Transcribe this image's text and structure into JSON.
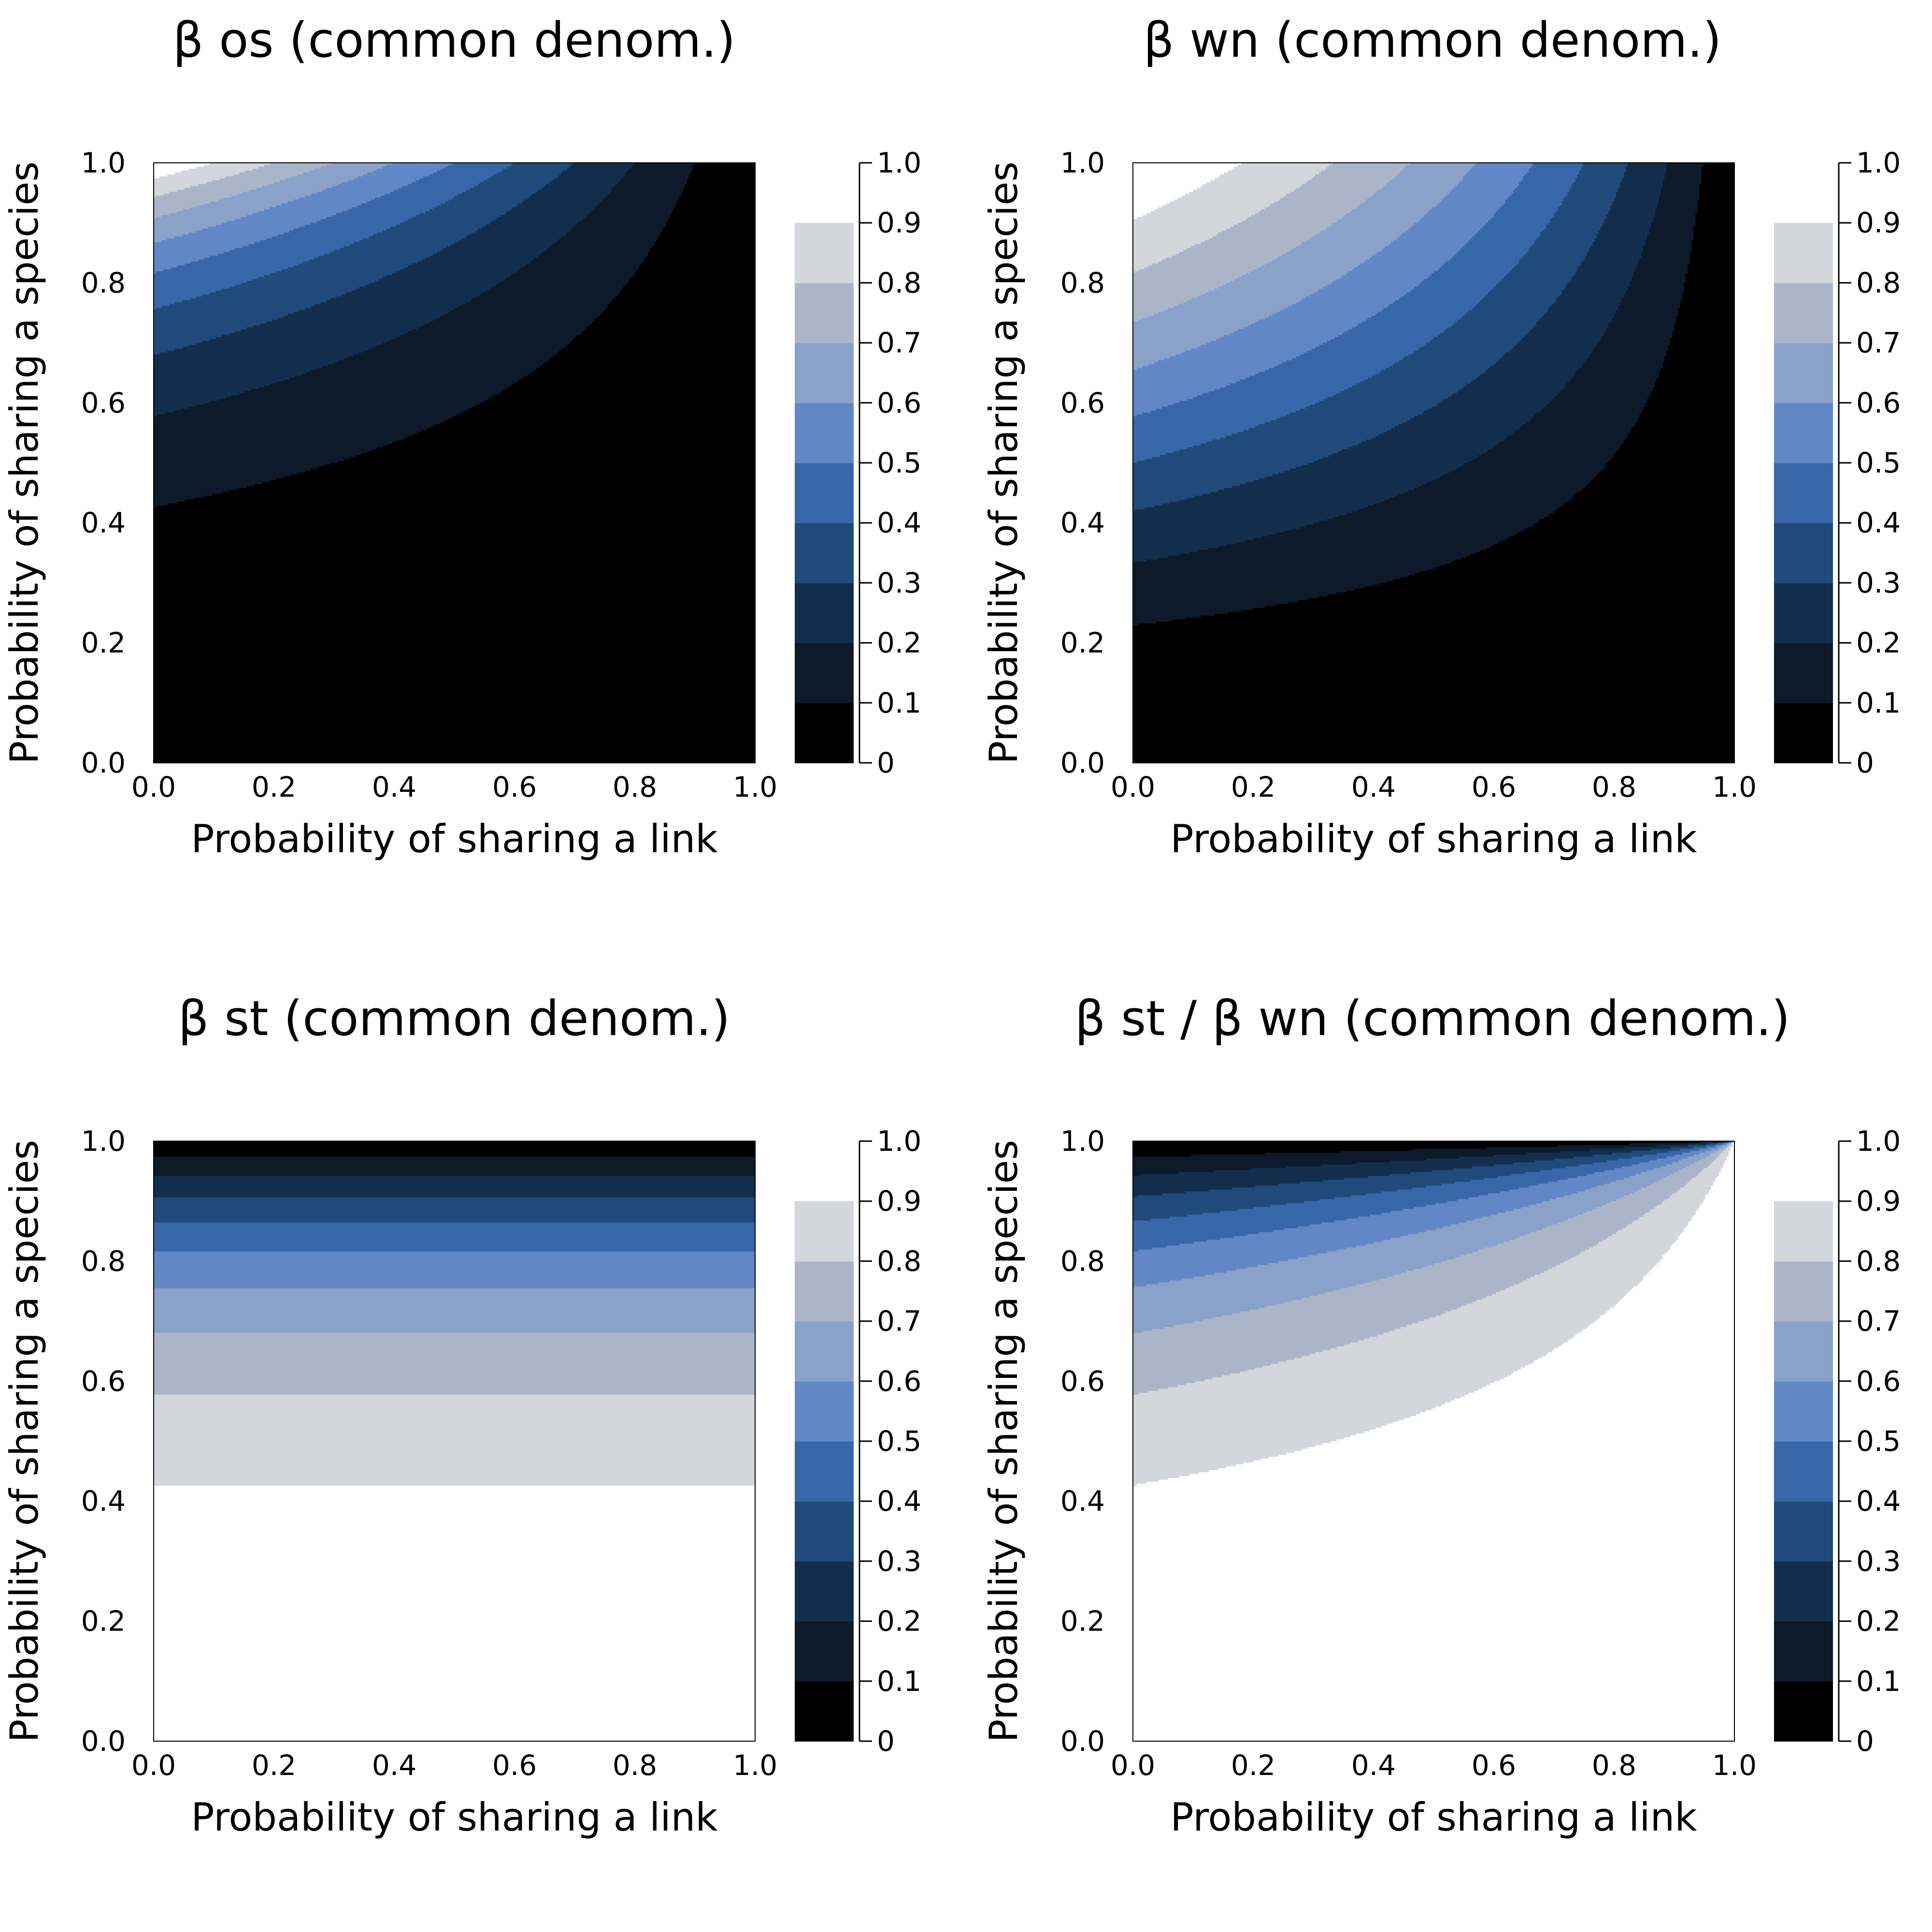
{
  "colors": {
    "levels": [
      "#000000",
      "#0d1a2a",
      "#132e4d",
      "#1f4a7a",
      "#3767a8",
      "#6287c7",
      "#8aa1ca",
      "#abb5ca",
      "#d3d6db",
      "#ffffff"
    ],
    "frame": "#000000",
    "background": "#ffffff"
  },
  "chart_data": [
    {
      "type": "heatmap",
      "title": "β os (common denom.)",
      "xlabel": "Probability of sharing a link",
      "ylabel": "Probability of sharing a species",
      "xlim": [
        0,
        1
      ],
      "ylim": [
        0,
        1
      ],
      "xticks": [
        "0.0",
        "0.2",
        "0.4",
        "0.6",
        "0.8",
        "1.0"
      ],
      "yticks": [
        "0.0",
        "0.2",
        "0.4",
        "0.6",
        "0.8",
        "1.0"
      ],
      "formula": "z = (1 - pl) * t / (2 - t), t = ps^2",
      "contour_levels": [
        0,
        0.1,
        0.2,
        0.3,
        0.4,
        0.5,
        0.6,
        0.7,
        0.8,
        0.9,
        1.0
      ],
      "colorbar_ticks": [
        "0",
        "0.1",
        "0.2",
        "0.3",
        "0.4",
        "0.5",
        "0.6",
        "0.7",
        "0.8",
        "0.9",
        "1.0"
      ]
    },
    {
      "type": "heatmap",
      "title": "β wn (common denom.)",
      "xlabel": "Probability of sharing a link",
      "ylabel": "Probability of sharing a species",
      "xlim": [
        0,
        1
      ],
      "ylim": [
        0,
        1
      ],
      "xticks": [
        "0.0",
        "0.2",
        "0.4",
        "0.6",
        "0.8",
        "1.0"
      ],
      "yticks": [
        "0.0",
        "0.2",
        "0.4",
        "0.6",
        "0.8",
        "1.0"
      ],
      "formula": "z = 1 - (1 - t + pl * t) / (1 + t - pl * t), t = ps^2",
      "contour_levels": [
        0,
        0.1,
        0.2,
        0.3,
        0.4,
        0.5,
        0.6,
        0.7,
        0.8,
        0.9,
        1.0
      ],
      "colorbar_ticks": [
        "0",
        "0.1",
        "0.2",
        "0.3",
        "0.4",
        "0.5",
        "0.6",
        "0.7",
        "0.8",
        "0.9",
        "1.0"
      ]
    },
    {
      "type": "heatmap",
      "title": "β st (common denom.)",
      "xlabel": "Probability of sharing a link",
      "ylabel": "Probability of sharing a species",
      "xlim": [
        0,
        1
      ],
      "ylim": [
        0,
        1
      ],
      "xticks": [
        "0.0",
        "0.2",
        "0.4",
        "0.6",
        "0.8",
        "1.0"
      ],
      "yticks": [
        "0.0",
        "0.2",
        "0.4",
        "0.6",
        "0.8",
        "1.0"
      ],
      "formula": "z = 2 * (1 - t) / (2 - t), t = ps^2 (independent of link probability)",
      "contour_levels": [
        0,
        0.1,
        0.2,
        0.3,
        0.4,
        0.5,
        0.6,
        0.7,
        0.8,
        0.9,
        1.0
      ],
      "colorbar_ticks": [
        "0",
        "0.1",
        "0.2",
        "0.3",
        "0.4",
        "0.5",
        "0.6",
        "0.7",
        "0.8",
        "0.9",
        "1.0"
      ]
    },
    {
      "type": "heatmap",
      "title": "β st / β wn (common denom.)",
      "xlabel": "Probability of sharing a link",
      "ylabel": "Probability of sharing a species",
      "xlim": [
        0,
        1
      ],
      "ylim": [
        0,
        1
      ],
      "xticks": [
        "0.0",
        "0.2",
        "0.4",
        "0.6",
        "0.8",
        "1.0"
      ],
      "yticks": [
        "0.0",
        "0.2",
        "0.4",
        "0.6",
        "0.8",
        "1.0"
      ],
      "formula": "z = 2 * (1 - t) / (2 - t * (1 + pl)), t = ps^2",
      "contour_levels": [
        0,
        0.1,
        0.2,
        0.3,
        0.4,
        0.5,
        0.6,
        0.7,
        0.8,
        0.9,
        1.0
      ],
      "colorbar_ticks": [
        "0",
        "0.1",
        "0.2",
        "0.3",
        "0.4",
        "0.5",
        "0.6",
        "0.7",
        "0.8",
        "0.9",
        "1.0"
      ]
    }
  ]
}
